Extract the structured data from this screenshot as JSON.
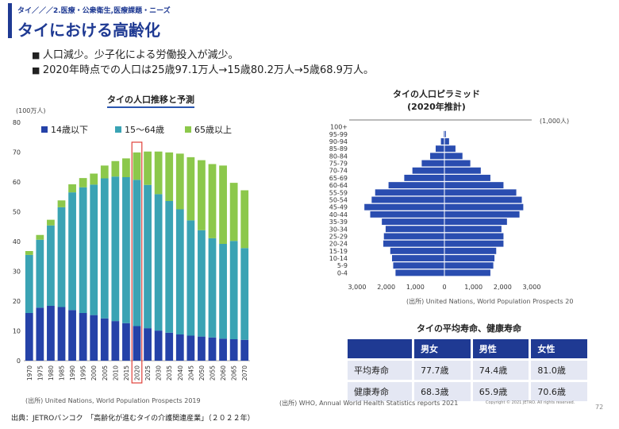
{
  "header": {
    "breadcrumb": "タイ／／／2.医療・公衆衛生,医療課題・ニーズ",
    "title": "タイにおける高齢化"
  },
  "bullets": [
    "人口減少。少子化による労働投入が減少。",
    "2020年時点での人口は25歳97.1万人→15歳80.2万人→5歳68.9万人。"
  ],
  "colors": {
    "accent": "#1f3a93",
    "age_0_14": "#2542a8",
    "age_15_64": "#3aa3b4",
    "age_65_plus": "#8cc84b",
    "male": "#2a4db0",
    "female": "#2a4db0",
    "highlight": "#e0403a"
  },
  "chart_data": [
    {
      "type": "bar",
      "stacked": true,
      "title": "タイの人口推移と予測",
      "ylabel": "(100万人)",
      "ylim": [
        0,
        80
      ],
      "yticks": [
        0,
        10,
        20,
        30,
        40,
        50,
        60,
        70,
        80
      ],
      "categories": [
        "1970",
        "1975",
        "1980",
        "1985",
        "1990",
        "1995",
        "2000",
        "2005",
        "2010",
        "2015",
        "2020",
        "2025",
        "2030",
        "2035",
        "2040",
        "2045",
        "2050",
        "2055",
        "2060",
        "2065",
        "2070"
      ],
      "highlight_category": "2020",
      "legend_position": "top",
      "series": [
        {
          "name": "14歳以下",
          "values": [
            16.0,
            17.8,
            18.4,
            18.0,
            17.0,
            16.0,
            15.3,
            14.2,
            13.3,
            12.6,
            11.6,
            10.9,
            10.1,
            9.4,
            8.8,
            8.4,
            8.1,
            7.8,
            7.4,
            7.2,
            7.0
          ]
        },
        {
          "name": "15〜64歳",
          "values": [
            19.5,
            22.8,
            27.0,
            33.5,
            39.5,
            42.2,
            43.8,
            47.0,
            48.5,
            49.0,
            49.1,
            48.1,
            45.8,
            44.2,
            42.0,
            38.7,
            35.7,
            33.3,
            31.8,
            33.0,
            30.8
          ]
        },
        {
          "name": "65歳以上",
          "values": [
            1.3,
            1.6,
            1.9,
            2.3,
            2.7,
            3.1,
            3.7,
            4.3,
            5.2,
            6.3,
            9.2,
            11.2,
            14.3,
            16.3,
            18.7,
            21.2,
            23.5,
            24.9,
            26.3,
            19.5,
            19.4
          ]
        }
      ],
      "source": "(出所) United Nations, World Population Prospects 2019"
    },
    {
      "type": "bar",
      "orientation": "horizontal",
      "title": "タイの人口ピラミッド",
      "subtitle": "(2020年推計)",
      "unit": "(1,000人)",
      "categories": [
        "0-4",
        "5-9",
        "10-14",
        "15-19",
        "20-24",
        "25-29",
        "30-34",
        "35-39",
        "40-44",
        "45-49",
        "50-54",
        "55-59",
        "60-64",
        "65-69",
        "70-74",
        "75-79",
        "80-84",
        "85-89",
        "90-94",
        "95-99",
        "100+"
      ],
      "xticks": [
        "3,000",
        "2,000",
        "1,000",
        "0",
        "1,000",
        "2,000",
        "3,000"
      ],
      "xlim": [
        -3000,
        3000
      ],
      "series": [
        {
          "name": "男性",
          "values": [
            1680,
            1760,
            1800,
            1860,
            2100,
            2080,
            2020,
            2150,
            2550,
            2750,
            2500,
            2380,
            1920,
            1380,
            1100,
            780,
            490,
            300,
            120,
            30,
            5
          ]
        },
        {
          "name": "女性",
          "values": [
            1580,
            1680,
            1720,
            1780,
            2030,
            2030,
            1960,
            2150,
            2580,
            2710,
            2660,
            2470,
            2030,
            1580,
            1250,
            890,
            620,
            380,
            160,
            50,
            10
          ]
        }
      ],
      "source": "(出所) United Nations, World Population Prospects 20"
    }
  ],
  "life_table": {
    "title": "タイの平均寿命、健康寿命",
    "headers": [
      "",
      "男女",
      "男性",
      "女性"
    ],
    "rows": [
      {
        "label": "平均寿命",
        "values": [
          "77.7歳",
          "74.4歳",
          "81.0歳"
        ]
      },
      {
        "label": "健康寿命",
        "values": [
          "68.3歳",
          "65.9歳",
          "70.6歳"
        ]
      }
    ],
    "source": "(出所) WHO, Annual World Health Statistics reports 2021"
  },
  "footer": {
    "source": "出典：JETROバンコク　「高齢化が進むタイの介護関連産業」（２０２２年）",
    "copyright": "Copyright © 2021 JETRO. All rights reserved.",
    "page_number": "72"
  }
}
